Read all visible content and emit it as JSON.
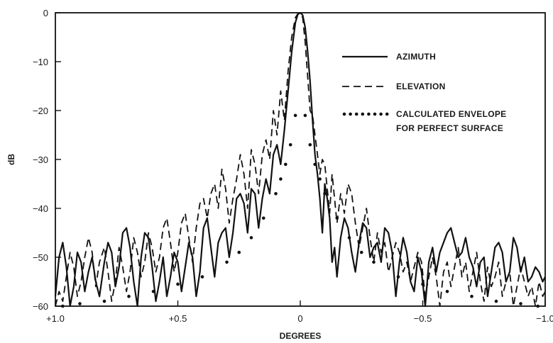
{
  "chart_data": {
    "type": "line",
    "xlabel": "DEGREES",
    "ylabel": "dB",
    "xlim": [
      1.0,
      -1.0
    ],
    "ylim": [
      -60,
      0
    ],
    "x_ticks": [
      1.0,
      0.5,
      0,
      -0.5,
      -1.0
    ],
    "x_tick_labels": [
      "+1.0",
      "+0.5",
      "0",
      "−0.5",
      "−1.0"
    ],
    "y_ticks": [
      0,
      -10,
      -20,
      -30,
      -40,
      -50,
      -60
    ],
    "y_tick_labels": [
      "0",
      "−10",
      "−20",
      "−30",
      "−40",
      "−50",
      "−60"
    ],
    "grid": false,
    "legend_position": "top-right",
    "series": [
      {
        "name": "AZIMUTH",
        "style": "solid",
        "x": [
          1.0,
          0.985,
          0.97,
          0.955,
          0.94,
          0.925,
          0.91,
          0.895,
          0.88,
          0.865,
          0.85,
          0.835,
          0.82,
          0.8,
          0.785,
          0.77,
          0.755,
          0.74,
          0.725,
          0.71,
          0.695,
          0.68,
          0.665,
          0.65,
          0.635,
          0.62,
          0.605,
          0.59,
          0.575,
          0.56,
          0.545,
          0.53,
          0.515,
          0.5,
          0.485,
          0.47,
          0.455,
          0.44,
          0.425,
          0.41,
          0.395,
          0.38,
          0.365,
          0.35,
          0.335,
          0.32,
          0.305,
          0.29,
          0.275,
          0.26,
          0.245,
          0.23,
          0.215,
          0.2,
          0.185,
          0.17,
          0.155,
          0.14,
          0.125,
          0.11,
          0.095,
          0.08,
          0.065,
          0.05,
          0.035,
          0.02,
          0.01,
          0.0,
          -0.01,
          -0.02,
          -0.03,
          -0.04,
          -0.05,
          -0.06,
          -0.07,
          -0.08,
          -0.09,
          -0.1,
          -0.11,
          -0.12,
          -0.13,
          -0.14,
          -0.15,
          -0.165,
          -0.18,
          -0.195,
          -0.21,
          -0.225,
          -0.24,
          -0.255,
          -0.27,
          -0.285,
          -0.3,
          -0.315,
          -0.33,
          -0.345,
          -0.36,
          -0.375,
          -0.39,
          -0.405,
          -0.42,
          -0.435,
          -0.45,
          -0.465,
          -0.48,
          -0.495,
          -0.51,
          -0.525,
          -0.54,
          -0.555,
          -0.57,
          -0.585,
          -0.6,
          -0.615,
          -0.63,
          -0.645,
          -0.66,
          -0.675,
          -0.69,
          -0.705,
          -0.72,
          -0.735,
          -0.75,
          -0.765,
          -0.78,
          -0.795,
          -0.81,
          -0.825,
          -0.84,
          -0.855,
          -0.87,
          -0.885,
          -0.9,
          -0.915,
          -0.93,
          -0.945,
          -0.96,
          -0.975,
          -0.99,
          -1.0
        ],
        "y": [
          -58,
          -50,
          -47,
          -52,
          -60,
          -56,
          -49,
          -51,
          -57,
          -53,
          -50,
          -55,
          -58,
          -51,
          -47,
          -49,
          -56,
          -52,
          -45,
          -44,
          -48,
          -55,
          -60,
          -50,
          -45,
          -46,
          -52,
          -59,
          -55,
          -50,
          -58,
          -54,
          -49,
          -51,
          -57,
          -52,
          -47,
          -50,
          -58,
          -53,
          -44,
          -42,
          -48,
          -54,
          -47,
          -45,
          -44,
          -50,
          -45,
          -38,
          -37,
          -39,
          -45,
          -36,
          -37,
          -44,
          -38,
          -34,
          -37,
          -29,
          -27,
          -31,
          -24,
          -16,
          -8,
          -2,
          -0.3,
          0,
          -0.5,
          -3,
          -8,
          -14,
          -22,
          -29,
          -33,
          -38,
          -45,
          -35,
          -38,
          -42,
          -51,
          -48,
          -54,
          -46,
          -42,
          -44,
          -49,
          -53,
          -47,
          -43,
          -44,
          -50,
          -48,
          -47,
          -51,
          -44,
          -45,
          -49,
          -58,
          -51,
          -46,
          -49,
          -55,
          -57,
          -50,
          -53,
          -60,
          -51,
          -48,
          -53,
          -49,
          -47,
          -45,
          -44,
          -47,
          -50,
          -49,
          -46,
          -50,
          -52,
          -56,
          -51,
          -50,
          -58,
          -53,
          -48,
          -47,
          -49,
          -55,
          -53,
          -46,
          -48,
          -53,
          -50,
          -55,
          -54,
          -52,
          -53,
          -55,
          -54
        ]
      },
      {
        "name": "ELEVATION",
        "style": "dashed",
        "x": [
          1.0,
          0.985,
          0.97,
          0.955,
          0.94,
          0.925,
          0.91,
          0.895,
          0.88,
          0.865,
          0.85,
          0.835,
          0.82,
          0.8,
          0.785,
          0.77,
          0.755,
          0.74,
          0.725,
          0.71,
          0.695,
          0.68,
          0.665,
          0.65,
          0.635,
          0.62,
          0.605,
          0.59,
          0.575,
          0.56,
          0.545,
          0.53,
          0.515,
          0.5,
          0.485,
          0.47,
          0.455,
          0.44,
          0.425,
          0.41,
          0.395,
          0.38,
          0.365,
          0.35,
          0.335,
          0.32,
          0.305,
          0.29,
          0.275,
          0.26,
          0.245,
          0.23,
          0.215,
          0.2,
          0.185,
          0.17,
          0.155,
          0.14,
          0.125,
          0.11,
          0.095,
          0.08,
          0.065,
          0.05,
          0.035,
          0.02,
          0.01,
          0.0,
          -0.01,
          -0.02,
          -0.03,
          -0.04,
          -0.05,
          -0.06,
          -0.07,
          -0.08,
          -0.09,
          -0.1,
          -0.11,
          -0.12,
          -0.13,
          -0.14,
          -0.15,
          -0.165,
          -0.18,
          -0.195,
          -0.21,
          -0.225,
          -0.24,
          -0.255,
          -0.27,
          -0.285,
          -0.3,
          -0.315,
          -0.33,
          -0.345,
          -0.36,
          -0.375,
          -0.39,
          -0.405,
          -0.42,
          -0.435,
          -0.45,
          -0.465,
          -0.48,
          -0.495,
          -0.51,
          -0.525,
          -0.54,
          -0.555,
          -0.57,
          -0.585,
          -0.6,
          -0.615,
          -0.63,
          -0.645,
          -0.66,
          -0.675,
          -0.69,
          -0.705,
          -0.72,
          -0.735,
          -0.75,
          -0.765,
          -0.78,
          -0.795,
          -0.81,
          -0.825,
          -0.84,
          -0.855,
          -0.87,
          -0.885,
          -0.9,
          -0.915,
          -0.93,
          -0.945,
          -0.96,
          -0.975,
          -0.99,
          -1.0
        ],
        "y": [
          -60,
          -57,
          -59,
          -54,
          -49,
          -52,
          -58,
          -55,
          -50,
          -46,
          -49,
          -56,
          -51,
          -48,
          -53,
          -59,
          -55,
          -48,
          -52,
          -57,
          -53,
          -46,
          -49,
          -54,
          -51,
          -45,
          -48,
          -53,
          -50,
          -44,
          -42,
          -47,
          -53,
          -49,
          -43,
          -41,
          -46,
          -51,
          -44,
          -39,
          -38,
          -42,
          -37,
          -35,
          -40,
          -32,
          -36,
          -43,
          -38,
          -34,
          -29,
          -33,
          -40,
          -28,
          -31,
          -37,
          -29,
          -26,
          -30,
          -20,
          -25,
          -16,
          -22,
          -12,
          -5,
          -1,
          -0.2,
          -0.1,
          -1,
          -6,
          -13,
          -20,
          -21,
          -25,
          -29,
          -33,
          -30,
          -31,
          -36,
          -41,
          -33,
          -38,
          -43,
          -37,
          -41,
          -35,
          -37,
          -43,
          -48,
          -44,
          -40,
          -46,
          -51,
          -45,
          -49,
          -47,
          -53,
          -50,
          -47,
          -49,
          -53,
          -51,
          -55,
          -52,
          -49,
          -51,
          -58,
          -54,
          -50,
          -54,
          -60,
          -53,
          -51,
          -56,
          -52,
          -48,
          -54,
          -51,
          -57,
          -53,
          -49,
          -55,
          -59,
          -52,
          -56,
          -54,
          -51,
          -58,
          -55,
          -53,
          -60,
          -56,
          -52,
          -55,
          -58,
          -56,
          -60,
          -55,
          -58,
          -57
        ]
      },
      {
        "name": "CALCULATED ENVELOPE FOR PERFECT SURFACE",
        "style": "dotted",
        "x": [
          0.97,
          0.9,
          0.8,
          0.7,
          0.6,
          0.5,
          0.4,
          0.3,
          0.25,
          0.2,
          0.15,
          0.1,
          0.08,
          0.06,
          0.04,
          0.02,
          -0.02,
          -0.04,
          -0.06,
          -0.08,
          -0.1,
          -0.15,
          -0.2,
          -0.25,
          -0.3,
          -0.4,
          -0.5,
          -0.6,
          -0.7,
          -0.8,
          -0.9,
          -0.97
        ],
        "y": [
          -60,
          -59.5,
          -59,
          -58,
          -57,
          -55.5,
          -54,
          -51,
          -49,
          -46,
          -42,
          -37,
          -34,
          -31,
          -27,
          -21,
          -21,
          -27,
          -31,
          -34,
          -37,
          -42,
          -46,
          -49,
          -51,
          -54,
          -55.5,
          -57,
          -58,
          -59,
          -59.5,
          -60
        ]
      }
    ]
  }
}
